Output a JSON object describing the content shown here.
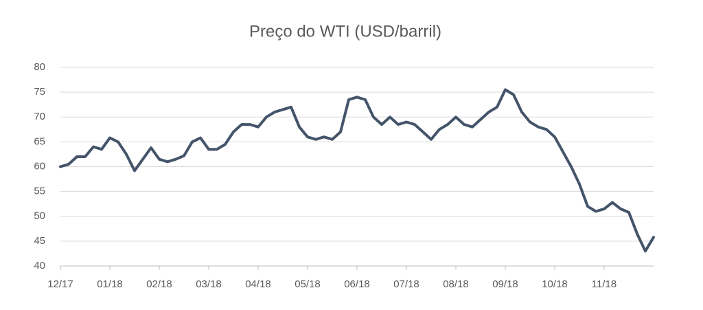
{
  "chart_data": {
    "type": "line",
    "title": "Preço do WTI (USD/barril)",
    "categories": [
      "12/17",
      null,
      null,
      null,
      null,
      null,
      "01/18",
      null,
      null,
      null,
      null,
      null,
      "02/18",
      null,
      null,
      null,
      null,
      null,
      "03/18",
      null,
      null,
      null,
      null,
      null,
      "04/18",
      null,
      null,
      null,
      null,
      null,
      "05/18",
      null,
      null,
      null,
      null,
      null,
      "06/18",
      null,
      null,
      null,
      null,
      null,
      "07/18",
      null,
      null,
      null,
      null,
      null,
      "08/18",
      null,
      null,
      null,
      null,
      null,
      "09/18",
      null,
      null,
      null,
      null,
      null,
      "10/18",
      null,
      null,
      null,
      null,
      null,
      "11/18",
      null,
      null,
      null,
      null,
      null,
      null
    ],
    "values": [
      60,
      60.5,
      62,
      62,
      64,
      63.5,
      65.8,
      65,
      62.5,
      59.2,
      61.5,
      63.8,
      61.5,
      61,
      61.5,
      62.2,
      65,
      65.8,
      63.5,
      63.5,
      64.5,
      67,
      68.5,
      68.5,
      68,
      70,
      71,
      71.5,
      72,
      68,
      66,
      65.5,
      66,
      65.5,
      67,
      73.5,
      74,
      73.5,
      70,
      68.5,
      70,
      68.5,
      69,
      68.5,
      67,
      65.5,
      67.5,
      68.5,
      70,
      68.5,
      68,
      69.5,
      71,
      72,
      75.5,
      74.5,
      71,
      69,
      68,
      67.5,
      66,
      63,
      60,
      56.5,
      52,
      51,
      51.5,
      52.8,
      51.5,
      50.8,
      46.5,
      43,
      45.8
    ],
    "color": "#44546a",
    "ylim": [
      40,
      80
    ],
    "yticks": [
      40,
      45,
      50,
      55,
      60,
      65,
      70,
      75,
      80
    ],
    "grid": true
  }
}
